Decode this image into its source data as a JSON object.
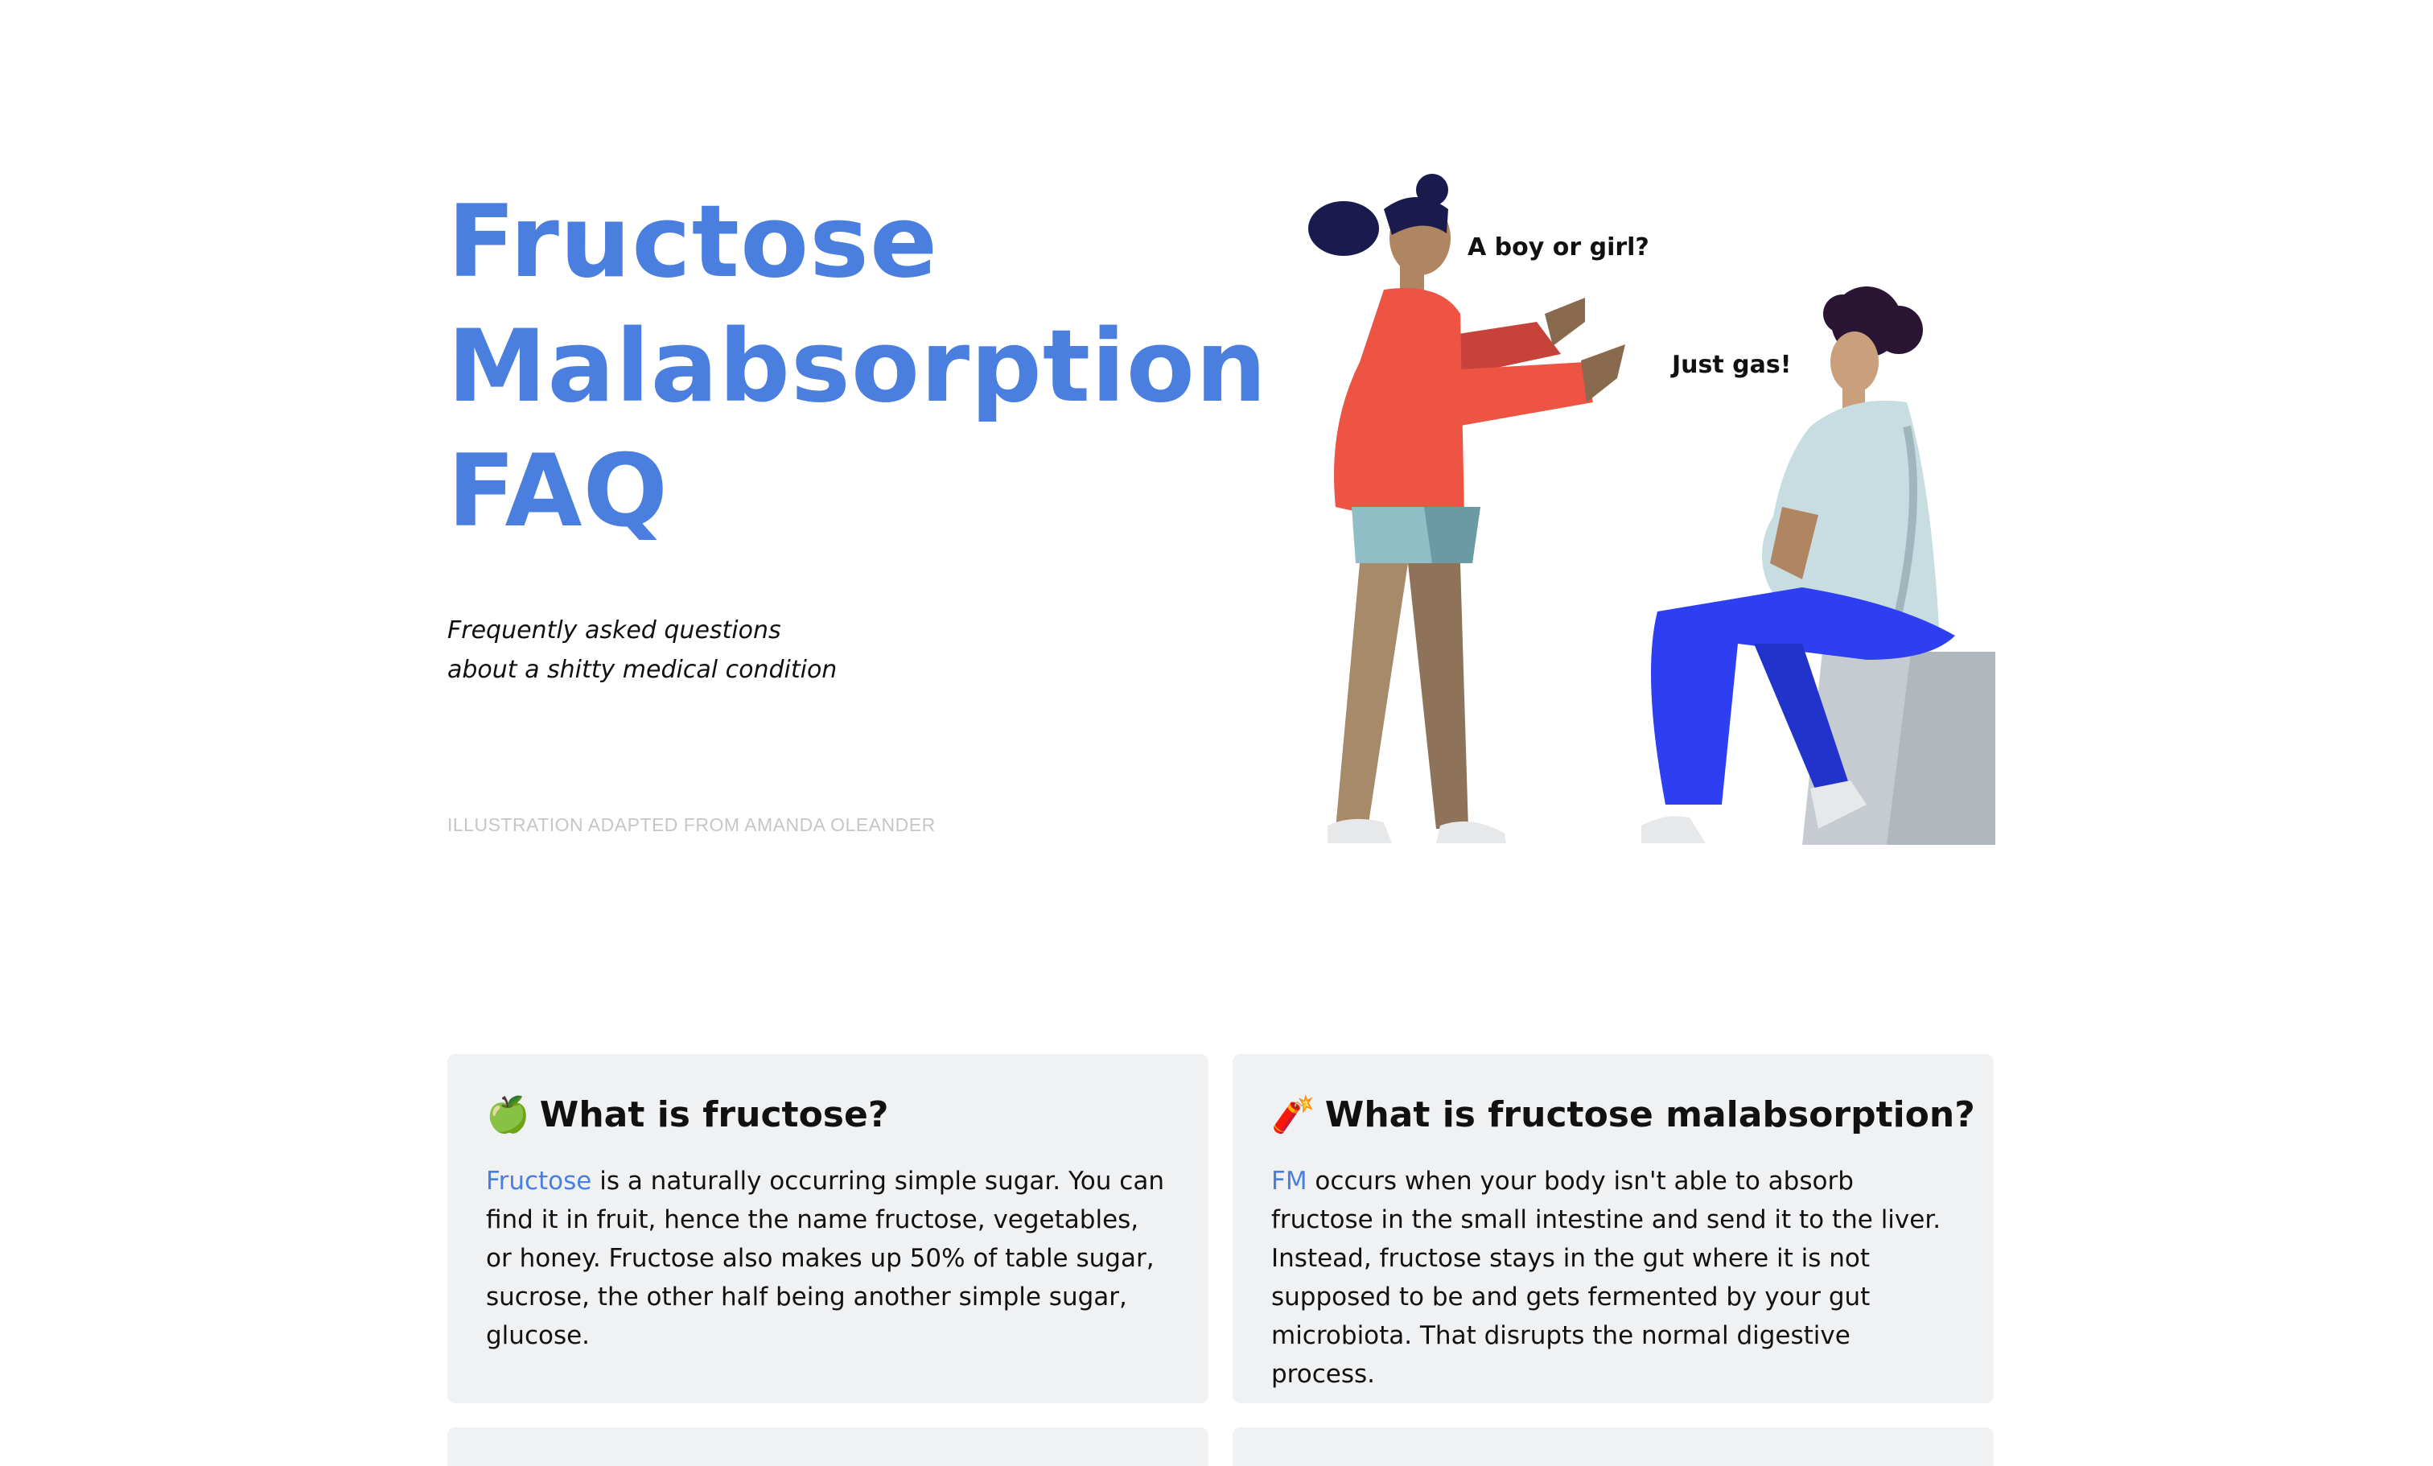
{
  "hero": {
    "title_lines": [
      "Fructose",
      "Malabsorption",
      "FAQ"
    ],
    "subtitle_lines": [
      "Frequently asked questions",
      "about a shitty medical condition"
    ],
    "credit": "ILLUSTRATION ADAPTED FROM AMANDA OLEANDER"
  },
  "illustration": {
    "bubble_1": "A boy or girl?",
    "bubble_2": "Just gas!"
  },
  "cards": [
    {
      "icon": "🍏",
      "icon_name": "green-apple-icon",
      "title": "What is fructose?",
      "link_text": "Fructose",
      "body": " is a naturally occurring simple sugar. You can find it in fruit, hence the name fructose, vegetables, or honey. Fructose also makes up 50% of table sugar, sucrose, the other half being another simple sugar, glucose."
    },
    {
      "icon": "🧨",
      "icon_name": "firecracker-icon",
      "title": "What is fructose malabsorption?",
      "link_text": "FM",
      "body": " occurs when your body isn't able to absorb fructose in the small intestine and send it to the liver. Instead, fructose stays in the gut where it is not supposed to be and gets fermented by your gut microbiota. That disrupts the normal digestive process."
    }
  ],
  "colors": {
    "accent": "#4a7fe0",
    "card_bg": "#f0f1f3",
    "credit": "#c6c6c6"
  }
}
